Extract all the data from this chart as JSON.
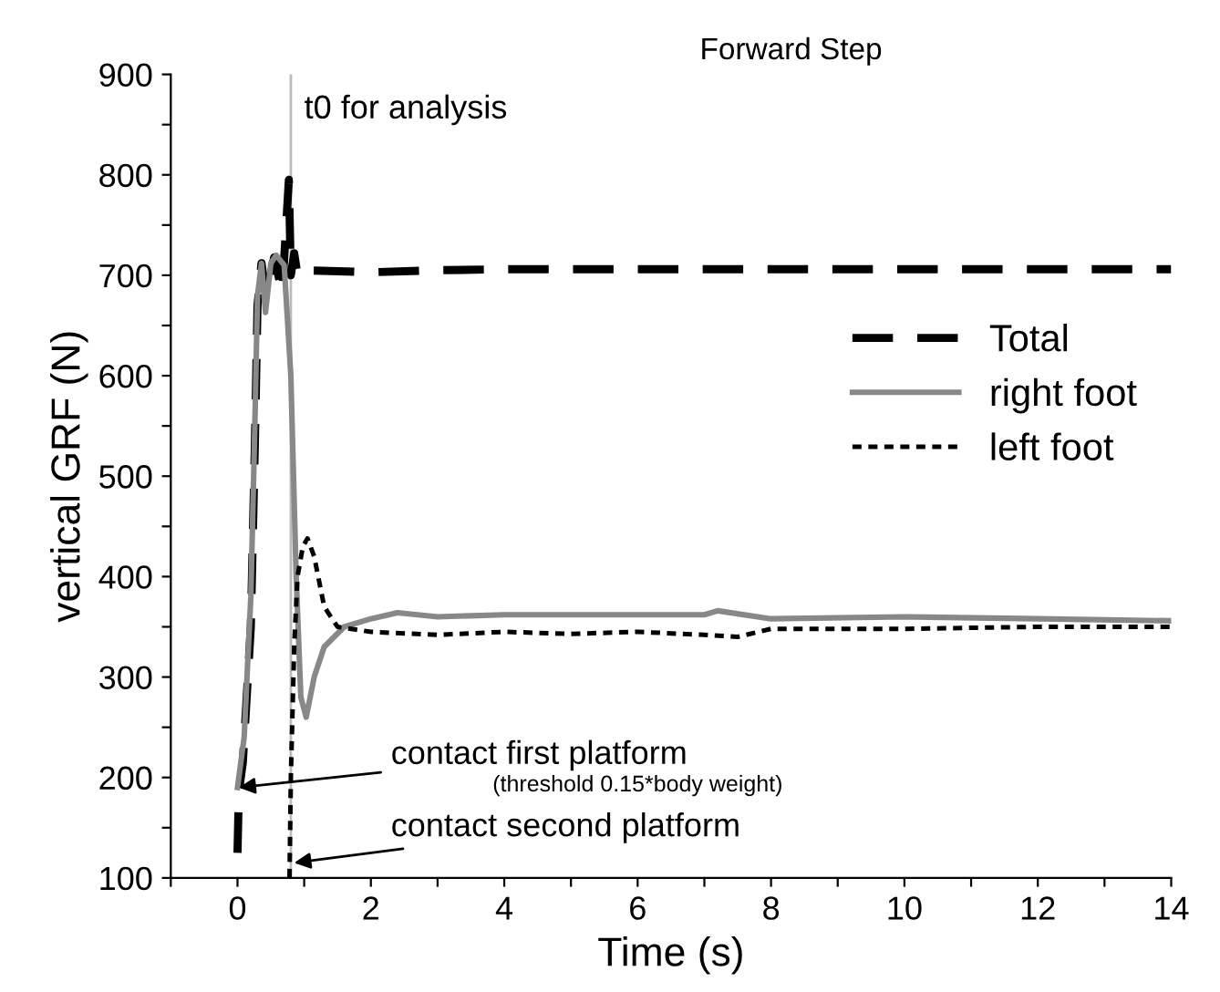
{
  "chart_data": {
    "type": "line",
    "title": "Forward Step",
    "xlabel": "Time (s)",
    "ylabel": "vertical GRF (N)",
    "xlim": [
      -1,
      14
    ],
    "ylim": [
      100,
      900
    ],
    "xticks": [
      {
        "value": -1,
        "label": null
      },
      0,
      {
        "value": 1,
        "label": null
      },
      2,
      {
        "value": 3,
        "label": null
      },
      4,
      {
        "value": 5,
        "label": null
      },
      6,
      {
        "value": 7,
        "label": null
      },
      8,
      {
        "value": 9,
        "label": null
      },
      10,
      {
        "value": 11,
        "label": null
      },
      12,
      {
        "value": 13,
        "label": null
      },
      14
    ],
    "yticks": [
      100,
      {
        "value": 150,
        "label": null
      },
      200,
      {
        "value": 250,
        "label": null
      },
      300,
      {
        "value": 350,
        "label": null
      },
      400,
      {
        "value": 450,
        "label": null
      },
      500,
      {
        "value": 550,
        "label": null
      },
      600,
      {
        "value": 650,
        "label": null
      },
      700,
      {
        "value": 750,
        "label": null
      },
      800,
      {
        "value": 850,
        "label": null
      },
      900
    ],
    "grid": false,
    "legend": "right",
    "marker": "none",
    "series": [
      {
        "name": "Total",
        "color": "#000000",
        "line_style": "dashed",
        "x": [
          0,
          0.02,
          0.08,
          0.2,
          0.26,
          0.3,
          0.36,
          0.43,
          0.55,
          0.67,
          0.77,
          0.8,
          0.85,
          0.9,
          1,
          2,
          3,
          4,
          6,
          8,
          10,
          12,
          14
        ],
        "values": [
          125,
          185,
          215,
          350,
          530,
          670,
          712,
          678,
          718,
          683,
          795,
          700,
          722,
          700,
          705,
          703,
          705,
          706,
          706,
          706,
          706,
          706,
          706
        ]
      },
      {
        "name": "right foot",
        "color": "#888888",
        "line_style": "solid",
        "x": [
          0,
          0.05,
          0.1,
          0.2,
          0.26,
          0.3,
          0.36,
          0.42,
          0.5,
          0.58,
          0.7,
          0.8,
          0.88,
          0.95,
          1.03,
          1.15,
          1.3,
          1.6,
          2,
          2.4,
          3,
          4,
          5,
          6,
          7,
          7.2,
          8,
          10,
          12,
          14
        ],
        "values": [
          190,
          215,
          240,
          380,
          550,
          680,
          712,
          663,
          712,
          720,
          710,
          600,
          400,
          280,
          260,
          300,
          330,
          350,
          358,
          364,
          360,
          362,
          362,
          362,
          362,
          366,
          358,
          360,
          358,
          356
        ]
      },
      {
        "name": "left foot",
        "color": "#000000",
        "line_style": "dotted",
        "x": [
          0.78,
          0.8,
          0.85,
          0.9,
          0.98,
          1.05,
          1.15,
          1.3,
          1.5,
          2,
          3,
          4,
          5,
          6,
          7,
          7.5,
          8,
          10,
          12,
          14
        ],
        "values": [
          100,
          200,
          330,
          400,
          430,
          438,
          420,
          370,
          350,
          345,
          342,
          345,
          343,
          345,
          342,
          340,
          348,
          348,
          350,
          350
        ]
      }
    ],
    "ref_lines": [
      {
        "axis": "x",
        "value": 0.8,
        "label": "t0 for analysis",
        "color": "#bbbbbb"
      }
    ],
    "annotations": [
      {
        "text": "contact first platform",
        "x": 0.02,
        "y": 190
      },
      "(threshold 0.15*body weight)",
      {
        "text": "contact second platform",
        "x": 0.85,
        "y": 115
      }
    ]
  }
}
